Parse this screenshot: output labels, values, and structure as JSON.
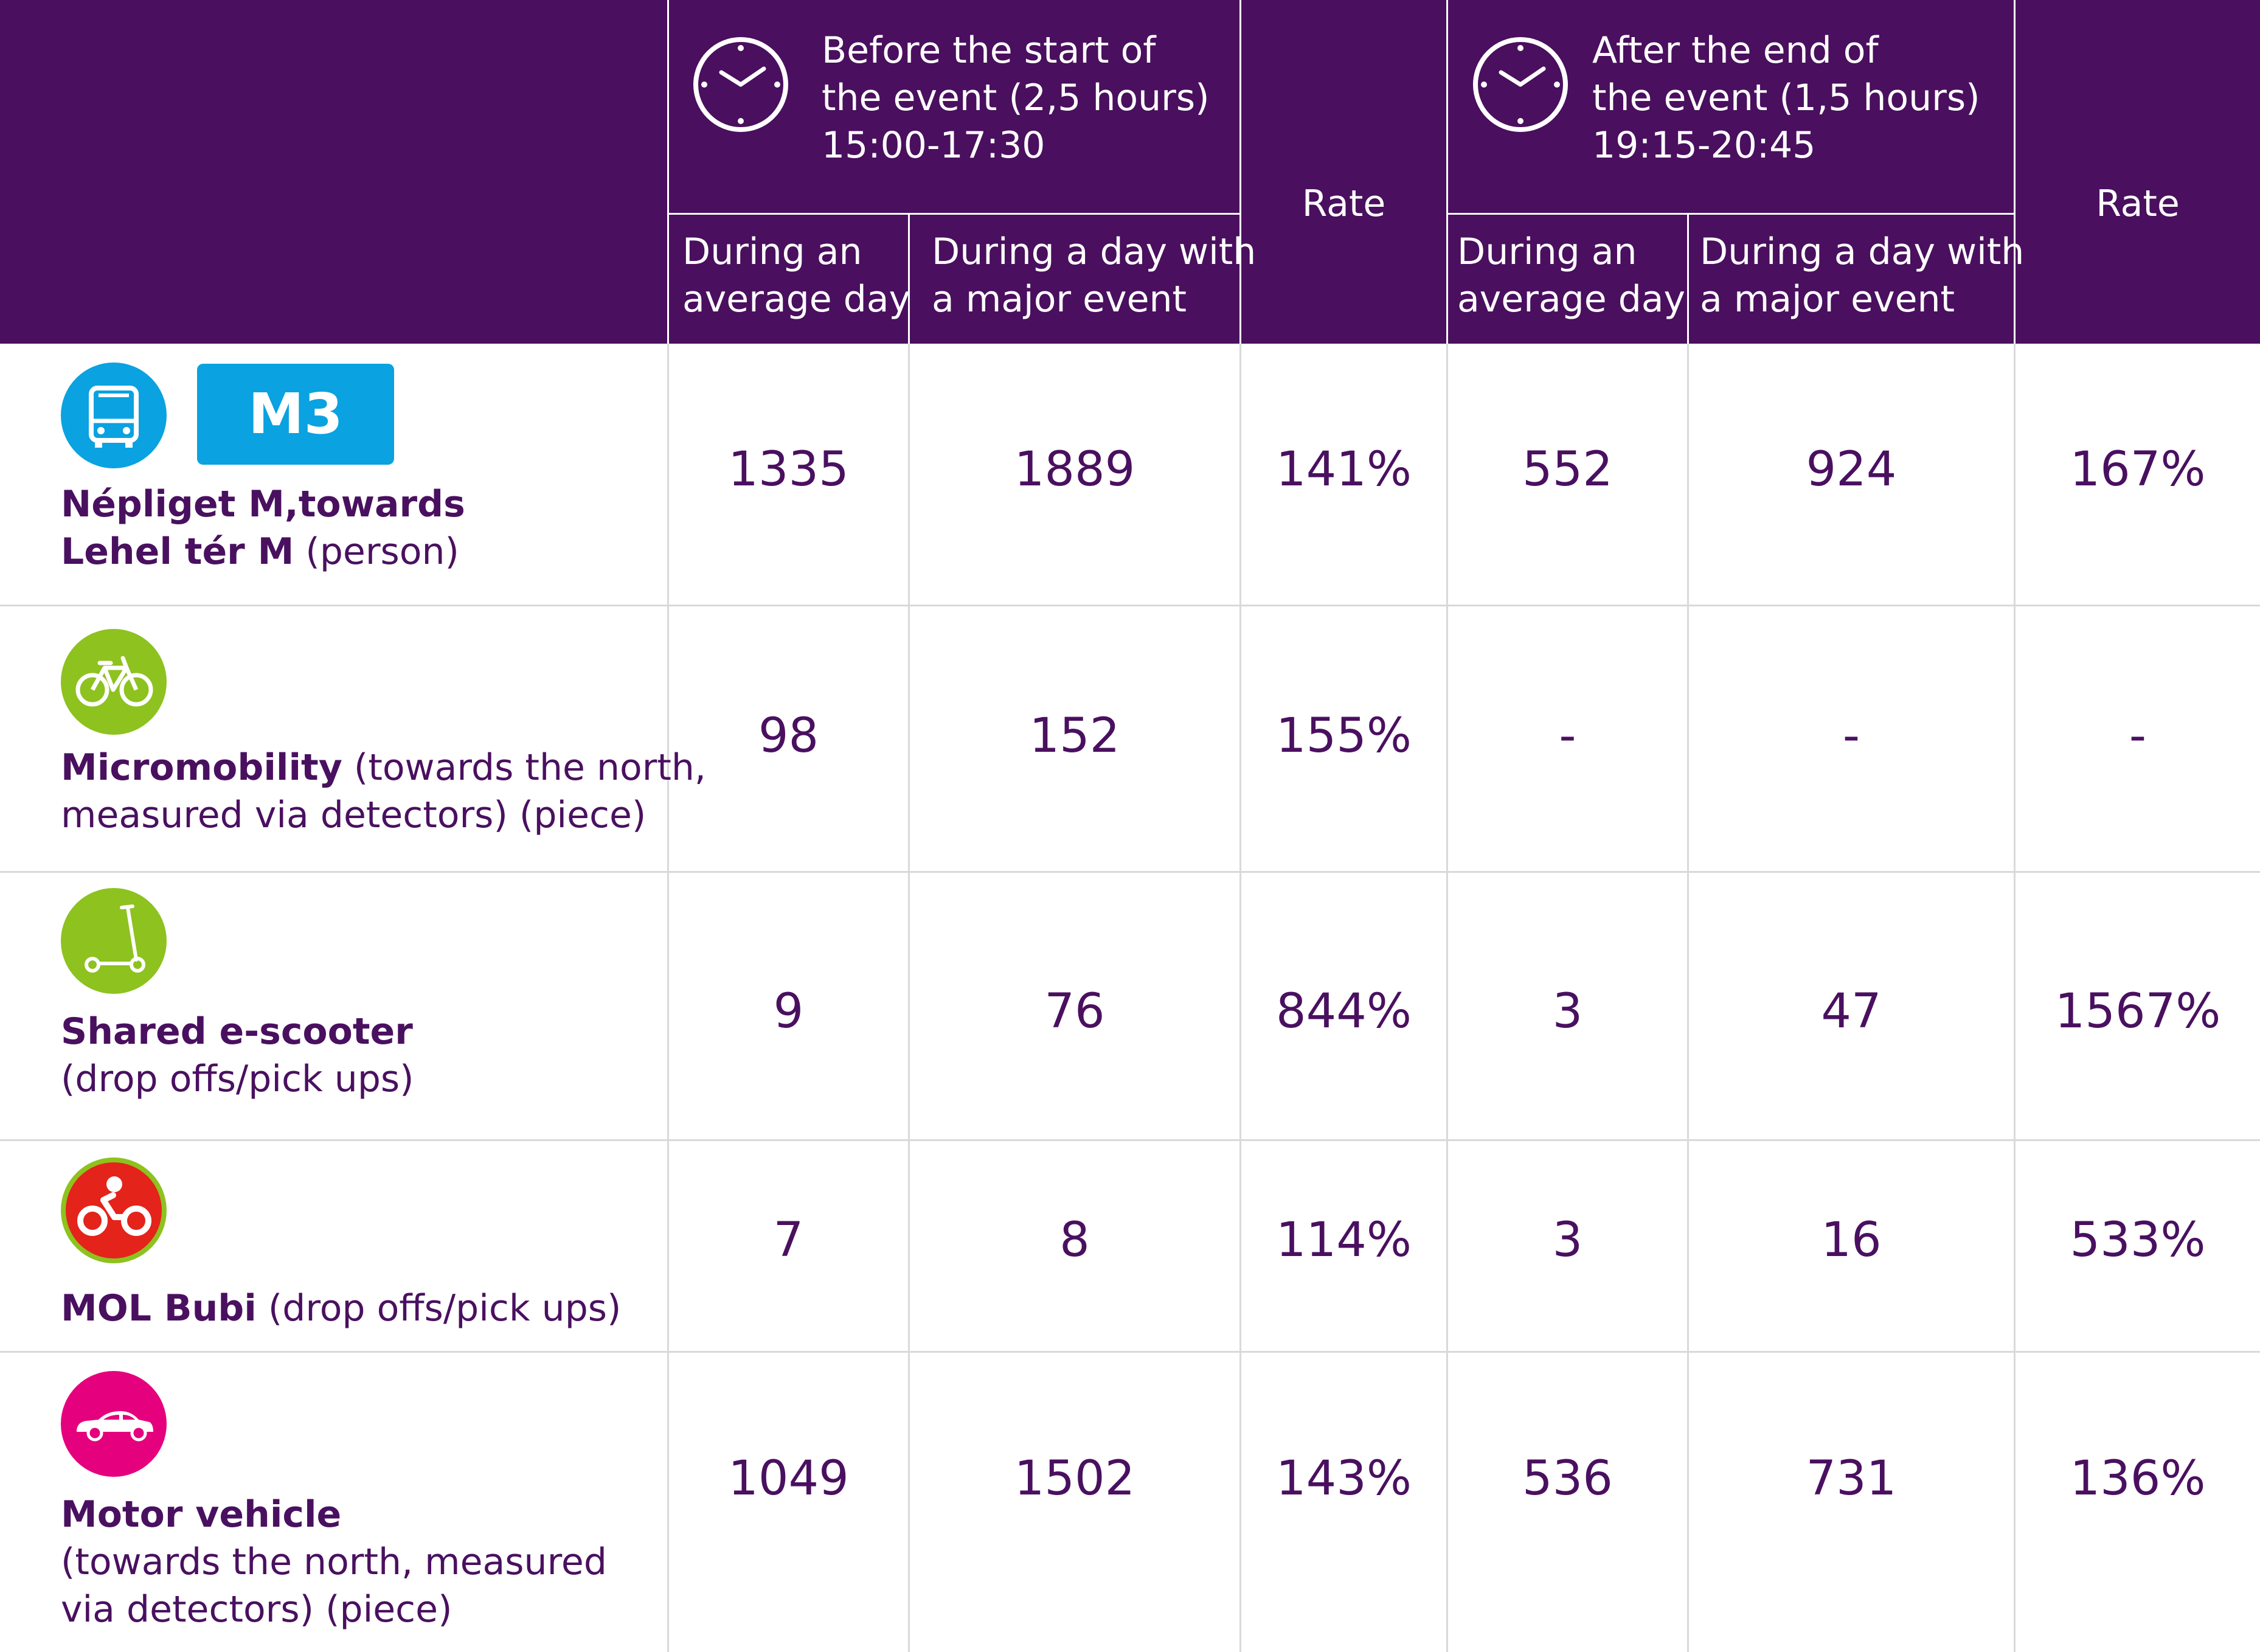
{
  "header": {
    "before": {
      "title_line1": "Before the start of",
      "title_line2": "the event (2,5 hours)",
      "time": "15:00-17:30",
      "icon": "clock-icon"
    },
    "after": {
      "title_line1": "After the end of",
      "title_line2": "the event (1,5 hours)",
      "time": "19:15-20:45",
      "icon": "clock-icon"
    },
    "sub_avg_line1": "During an",
    "sub_avg_line2": "average day",
    "sub_major_line1": "During a day with",
    "sub_major_line2": "a major event",
    "rate": "Rate"
  },
  "colors": {
    "header_bg": "#4a0f5e",
    "text": "#4a1060",
    "bus": "#0aa2e0",
    "bike": "#8dc21f",
    "bubi": "#e4231b",
    "car": "#e5007e"
  },
  "rows": [
    {
      "icon": "bus-icon",
      "badge": "M3",
      "label_bold_1": "Népliget M,towards",
      "label_bold_2": "Lehel tér M",
      "label_rest_2": " (person)",
      "values": [
        "1335",
        "1889",
        "141%",
        "552",
        "924",
        "167%"
      ]
    },
    {
      "icon": "bicycle-icon",
      "label_bold_1": "Micromobility",
      "label_rest_1": " (towards the north,",
      "label_2": "measured via detectors) (piece)",
      "values": [
        "98",
        "152",
        "155%",
        "-",
        "-",
        "-"
      ]
    },
    {
      "icon": "scooter-icon",
      "label_bold_1": "Shared e-scooter",
      "label_2": "(drop offs/pick ups)",
      "values": [
        "9",
        "76",
        "844%",
        "3",
        "47",
        "1567%"
      ]
    },
    {
      "icon": "mol-bubi-icon",
      "label_bold_1": "MOL Bubi",
      "label_rest_1": " (drop offs/pick ups)",
      "values": [
        "7",
        "8",
        "114%",
        "3",
        "16",
        "533%"
      ]
    },
    {
      "icon": "car-icon",
      "label_bold_1": "Motor vehicle",
      "label_2": "(towards the north, measured",
      "label_3": "via detectors) (piece)",
      "values": [
        "1049",
        "1502",
        "143%",
        "536",
        "731",
        "136%"
      ]
    }
  ]
}
